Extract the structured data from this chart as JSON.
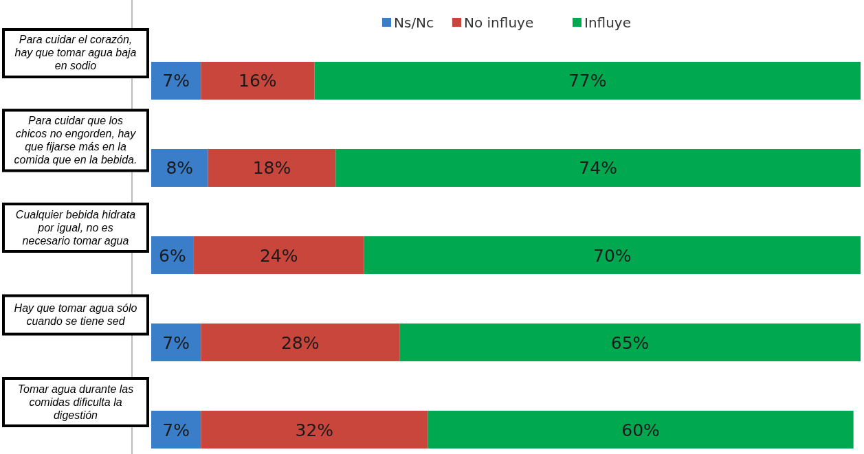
{
  "chart_data": {
    "type": "bar",
    "orientation": "horizontal",
    "stacked": true,
    "legend": "top",
    "categories": [
      "Para cuidar el corazón, hay que tomar agua baja en sodio",
      "Para cuidar que los chicos no engorden, hay que fijarse más en la comida que en la bebida.",
      "Cualquier bebida hidrata por igual, no es necesario tomar agua",
      "Hay que tomar agua sólo cuando se tiene sed",
      "Tomar agua durante las comidas dificulta la digestión"
    ],
    "series": [
      {
        "name": "Ns/Nc",
        "color": "#3a7dc9",
        "values": [
          7,
          8,
          6,
          7,
          7
        ],
        "value_labels": [
          "7%",
          "8%",
          "6%",
          "7%",
          "7%"
        ]
      },
      {
        "name": "No influye",
        "color": "#c9463d",
        "values": [
          16,
          18,
          24,
          28,
          32
        ],
        "value_labels": [
          "16%",
          "18%",
          "24%",
          "28%",
          "32%"
        ]
      },
      {
        "name": "Influye",
        "color": "#00a84f",
        "values": [
          77,
          74,
          70,
          65,
          60
        ],
        "value_labels": [
          "77%",
          "74%",
          "70%",
          "65%",
          "60%"
        ]
      }
    ]
  }
}
